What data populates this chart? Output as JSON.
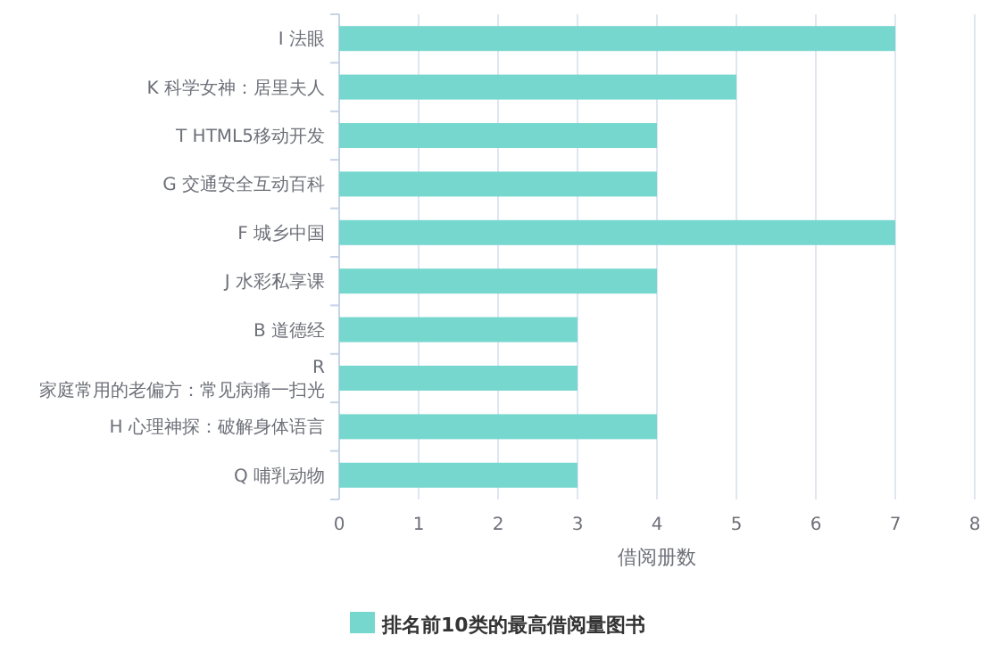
{
  "chart_data": {
    "type": "bar",
    "orientation": "horizontal",
    "categories": [
      "I 法眼",
      "K 科学女神：居里夫人",
      "T HTML5移动开发",
      "G 交通安全互动百科",
      "F 城乡中国",
      "J 水彩私享课",
      "B 道德经",
      "R\n家庭常用的老偏方：常见病痛一扫光",
      "H 心理神探：破解身体语言",
      "Q 哺乳动物"
    ],
    "series": [
      {
        "name": "排名前10类的最高借阅量图书",
        "color": "#76d7cf",
        "values": [
          7,
          5,
          4,
          4,
          7,
          4,
          3,
          3,
          4,
          3
        ]
      }
    ],
    "xlim": [
      0,
      8
    ],
    "xticks": [
      0,
      1,
      2,
      3,
      4,
      5,
      6,
      7,
      8
    ],
    "xlabel": "借阅册数",
    "grid": "x",
    "legend": "bottom"
  }
}
